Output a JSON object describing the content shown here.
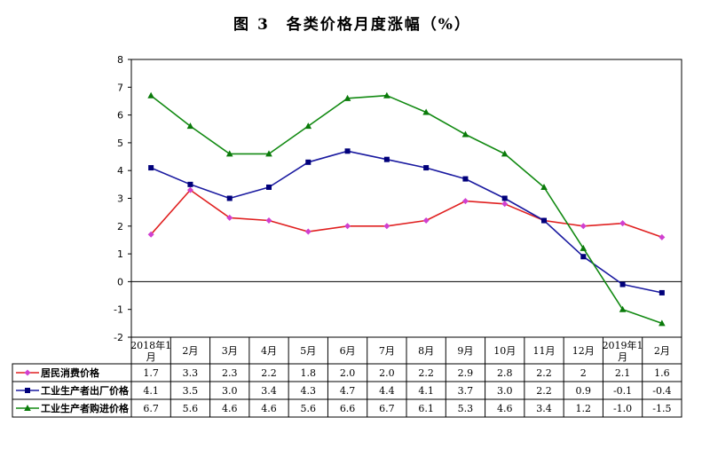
{
  "title": "图 3　各类价格月度涨幅（%）",
  "chart_data": {
    "type": "line",
    "title": "图 3　各类价格月度涨幅（%）",
    "categories": [
      "2018年1月",
      "2月",
      "3月",
      "4月",
      "5月",
      "6月",
      "7月",
      "8月",
      "9月",
      "10月",
      "11月",
      "12月",
      "2019年1月",
      "2月"
    ],
    "ylim": [
      -2,
      8
    ],
    "yticks": [
      -2,
      -1,
      0,
      1,
      2,
      3,
      4,
      5,
      6,
      7,
      8
    ],
    "grid": false,
    "legend": "data-table-left",
    "series": [
      {
        "name": "居民消费价格",
        "color": "#e02020",
        "marker": "diamond",
        "marker_color": "#d040d0",
        "values": [
          1.7,
          3.3,
          2.3,
          2.2,
          1.8,
          2.0,
          2.0,
          2.2,
          2.9,
          2.8,
          2.2,
          2,
          2.1,
          1.6
        ],
        "labels": [
          "1.7",
          "3.3",
          "2.3",
          "2.2",
          "1.8",
          "2.0",
          "2.0",
          "2.2",
          "2.9",
          "2.8",
          "2.2",
          "2",
          "2.1",
          "1.6"
        ]
      },
      {
        "name": "工业生产者出厂价格",
        "color": "#1a1aa0",
        "marker": "square",
        "marker_color": "#00007a",
        "values": [
          4.1,
          3.5,
          3.0,
          3.4,
          4.3,
          4.7,
          4.4,
          4.1,
          3.7,
          3.0,
          2.2,
          0.9,
          -0.1,
          -0.4
        ],
        "labels": [
          "4.1",
          "3.5",
          "3.0",
          "3.4",
          "4.3",
          "4.7",
          "4.4",
          "4.1",
          "3.7",
          "3.0",
          "2.2",
          "0.9",
          "-0.1",
          "-0.4"
        ]
      },
      {
        "name": "工业生产者购进价格",
        "color": "#128a12",
        "marker": "triangle",
        "marker_color": "#0a7a0a",
        "values": [
          6.7,
          5.6,
          4.6,
          4.6,
          5.6,
          6.6,
          6.7,
          6.1,
          5.3,
          4.6,
          3.4,
          1.2,
          -1.0,
          -1.5
        ],
        "labels": [
          "6.7",
          "5.6",
          "4.6",
          "4.6",
          "5.6",
          "6.6",
          "6.7",
          "6.1",
          "5.3",
          "4.6",
          "3.4",
          "1.2",
          "-1.0",
          "-1.5"
        ]
      }
    ]
  }
}
